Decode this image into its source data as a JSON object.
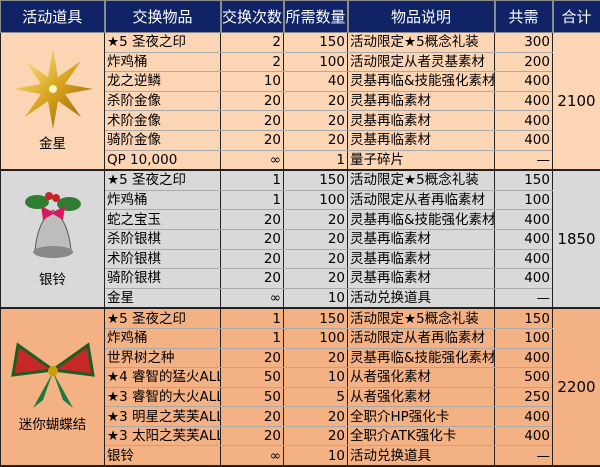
{
  "headers": [
    "活动道具",
    "交换物品",
    "交换次数",
    "所需数量",
    "物品说明",
    "共需",
    "合计"
  ],
  "groups": [
    {
      "item": "金星",
      "icon": "gold-star-icon",
      "color": "#fcd5b5",
      "total": "2100",
      "rows": [
        [
          "★5 圣夜之印",
          "2",
          "150",
          "活动限定★5概念礼装",
          "300"
        ],
        [
          "炸鸡桶",
          "2",
          "100",
          "活动限定从者灵基素材",
          "200"
        ],
        [
          "龙之逆鳞",
          "10",
          "40",
          "灵基再临&技能强化素材",
          "400"
        ],
        [
          "杀阶金像",
          "20",
          "20",
          "灵基再临素材",
          "400"
        ],
        [
          "术阶金像",
          "20",
          "20",
          "灵基再临素材",
          "400"
        ],
        [
          "骑阶金像",
          "20",
          "20",
          "灵基再临素材",
          "400"
        ],
        [
          "QP 10,000",
          "∞",
          "1",
          "量子碎片",
          "—"
        ]
      ]
    },
    {
      "item": "银铃",
      "icon": "silver-bell-icon",
      "color": "#d9d9d9",
      "total": "1850",
      "rows": [
        [
          "★5 圣夜之印",
          "1",
          "150",
          "活动限定★5概念礼装",
          "150"
        ],
        [
          "炸鸡桶",
          "1",
          "100",
          "活动限定从者再临素材",
          "100"
        ],
        [
          "蛇之宝玉",
          "20",
          "20",
          "灵基再临&技能强化素材",
          "400"
        ],
        [
          "杀阶银棋",
          "20",
          "20",
          "灵基再临素材",
          "400"
        ],
        [
          "术阶银棋",
          "20",
          "20",
          "灵基再临素材",
          "400"
        ],
        [
          "骑阶银棋",
          "20",
          "20",
          "灵基再临素材",
          "400"
        ],
        [
          "金星",
          "∞",
          "10",
          "活动兑换道具",
          "—"
        ]
      ]
    },
    {
      "item": "迷你蝴蝶结",
      "icon": "ribbon-bow-icon",
      "color": "#f4b184",
      "total": "2200",
      "rows": [
        [
          "★5 圣夜之印",
          "1",
          "150",
          "活动限定★5概念礼装",
          "150"
        ],
        [
          "炸鸡桶",
          "1",
          "100",
          "活动限定从者再临素材",
          "100"
        ],
        [
          "世界树之种",
          "20",
          "20",
          "灵基再临&技能强化素材",
          "400"
        ],
        [
          "★4 睿智的猛火ALL",
          "50",
          "10",
          "从者强化素材",
          "500"
        ],
        [
          "★3 睿智的大火ALL",
          "50",
          "5",
          "从者强化素材",
          "250"
        ],
        [
          "★3 明星之芙芙ALL",
          "20",
          "20",
          "全职介HP强化卡",
          "400"
        ],
        [
          "★3 太阳之芙芙ALL",
          "20",
          "20",
          "全职介ATK强化卡",
          "400"
        ],
        [
          "银铃",
          "∞",
          "10",
          "活动兑换道具",
          "—"
        ]
      ]
    }
  ]
}
